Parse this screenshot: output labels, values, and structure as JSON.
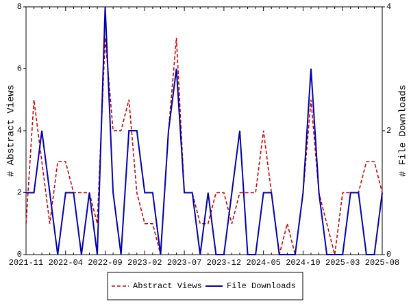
{
  "chart_data": {
    "type": "line",
    "categories": [
      "2021-11",
      null,
      null,
      null,
      null,
      "2022-04",
      null,
      null,
      null,
      null,
      "2022-09",
      null,
      null,
      null,
      null,
      "2023-02",
      null,
      null,
      null,
      null,
      "2023-07",
      null,
      null,
      null,
      null,
      "2023-12",
      null,
      null,
      null,
      null,
      "2024-05",
      null,
      null,
      null,
      null,
      "2024-10",
      null,
      null,
      null,
      null,
      "2025-03",
      null,
      null,
      null,
      null,
      "2025-08"
    ],
    "y_label": "# Abstract Views",
    "y2_label": "# File Downloads",
    "ylim": [
      0,
      8
    ],
    "yticks": [
      0,
      2,
      4,
      6,
      8
    ],
    "y2lim": [
      0,
      4
    ],
    "y2ticks": [
      0,
      2,
      4
    ],
    "series": [
      {
        "name": "Abstract Views",
        "color": "#cc0000",
        "dashed": true,
        "values": [
          1,
          5,
          3,
          1,
          3,
          3,
          2,
          2,
          2,
          1,
          7,
          4,
          4,
          5,
          2,
          1,
          1,
          0,
          4,
          7,
          2,
          2,
          1,
          1,
          2,
          2,
          1,
          2,
          2,
          2,
          4,
          2,
          0,
          1,
          0,
          2,
          5,
          2,
          1,
          0,
          2,
          2,
          2,
          3,
          3,
          2
        ]
      },
      {
        "name": "File Downloads",
        "color": "#0000aa",
        "axis": "y2",
        "values": [
          1,
          1,
          2,
          1,
          0,
          1,
          1,
          0,
          1,
          0,
          4,
          1,
          0,
          2,
          2,
          1,
          1,
          0,
          2,
          3,
          1,
          1,
          0,
          1,
          0,
          0,
          1,
          2,
          0,
          0,
          1,
          1,
          0,
          0,
          0,
          1,
          3,
          1,
          0,
          0,
          0,
          1,
          1,
          0,
          0,
          1
        ]
      }
    ]
  }
}
